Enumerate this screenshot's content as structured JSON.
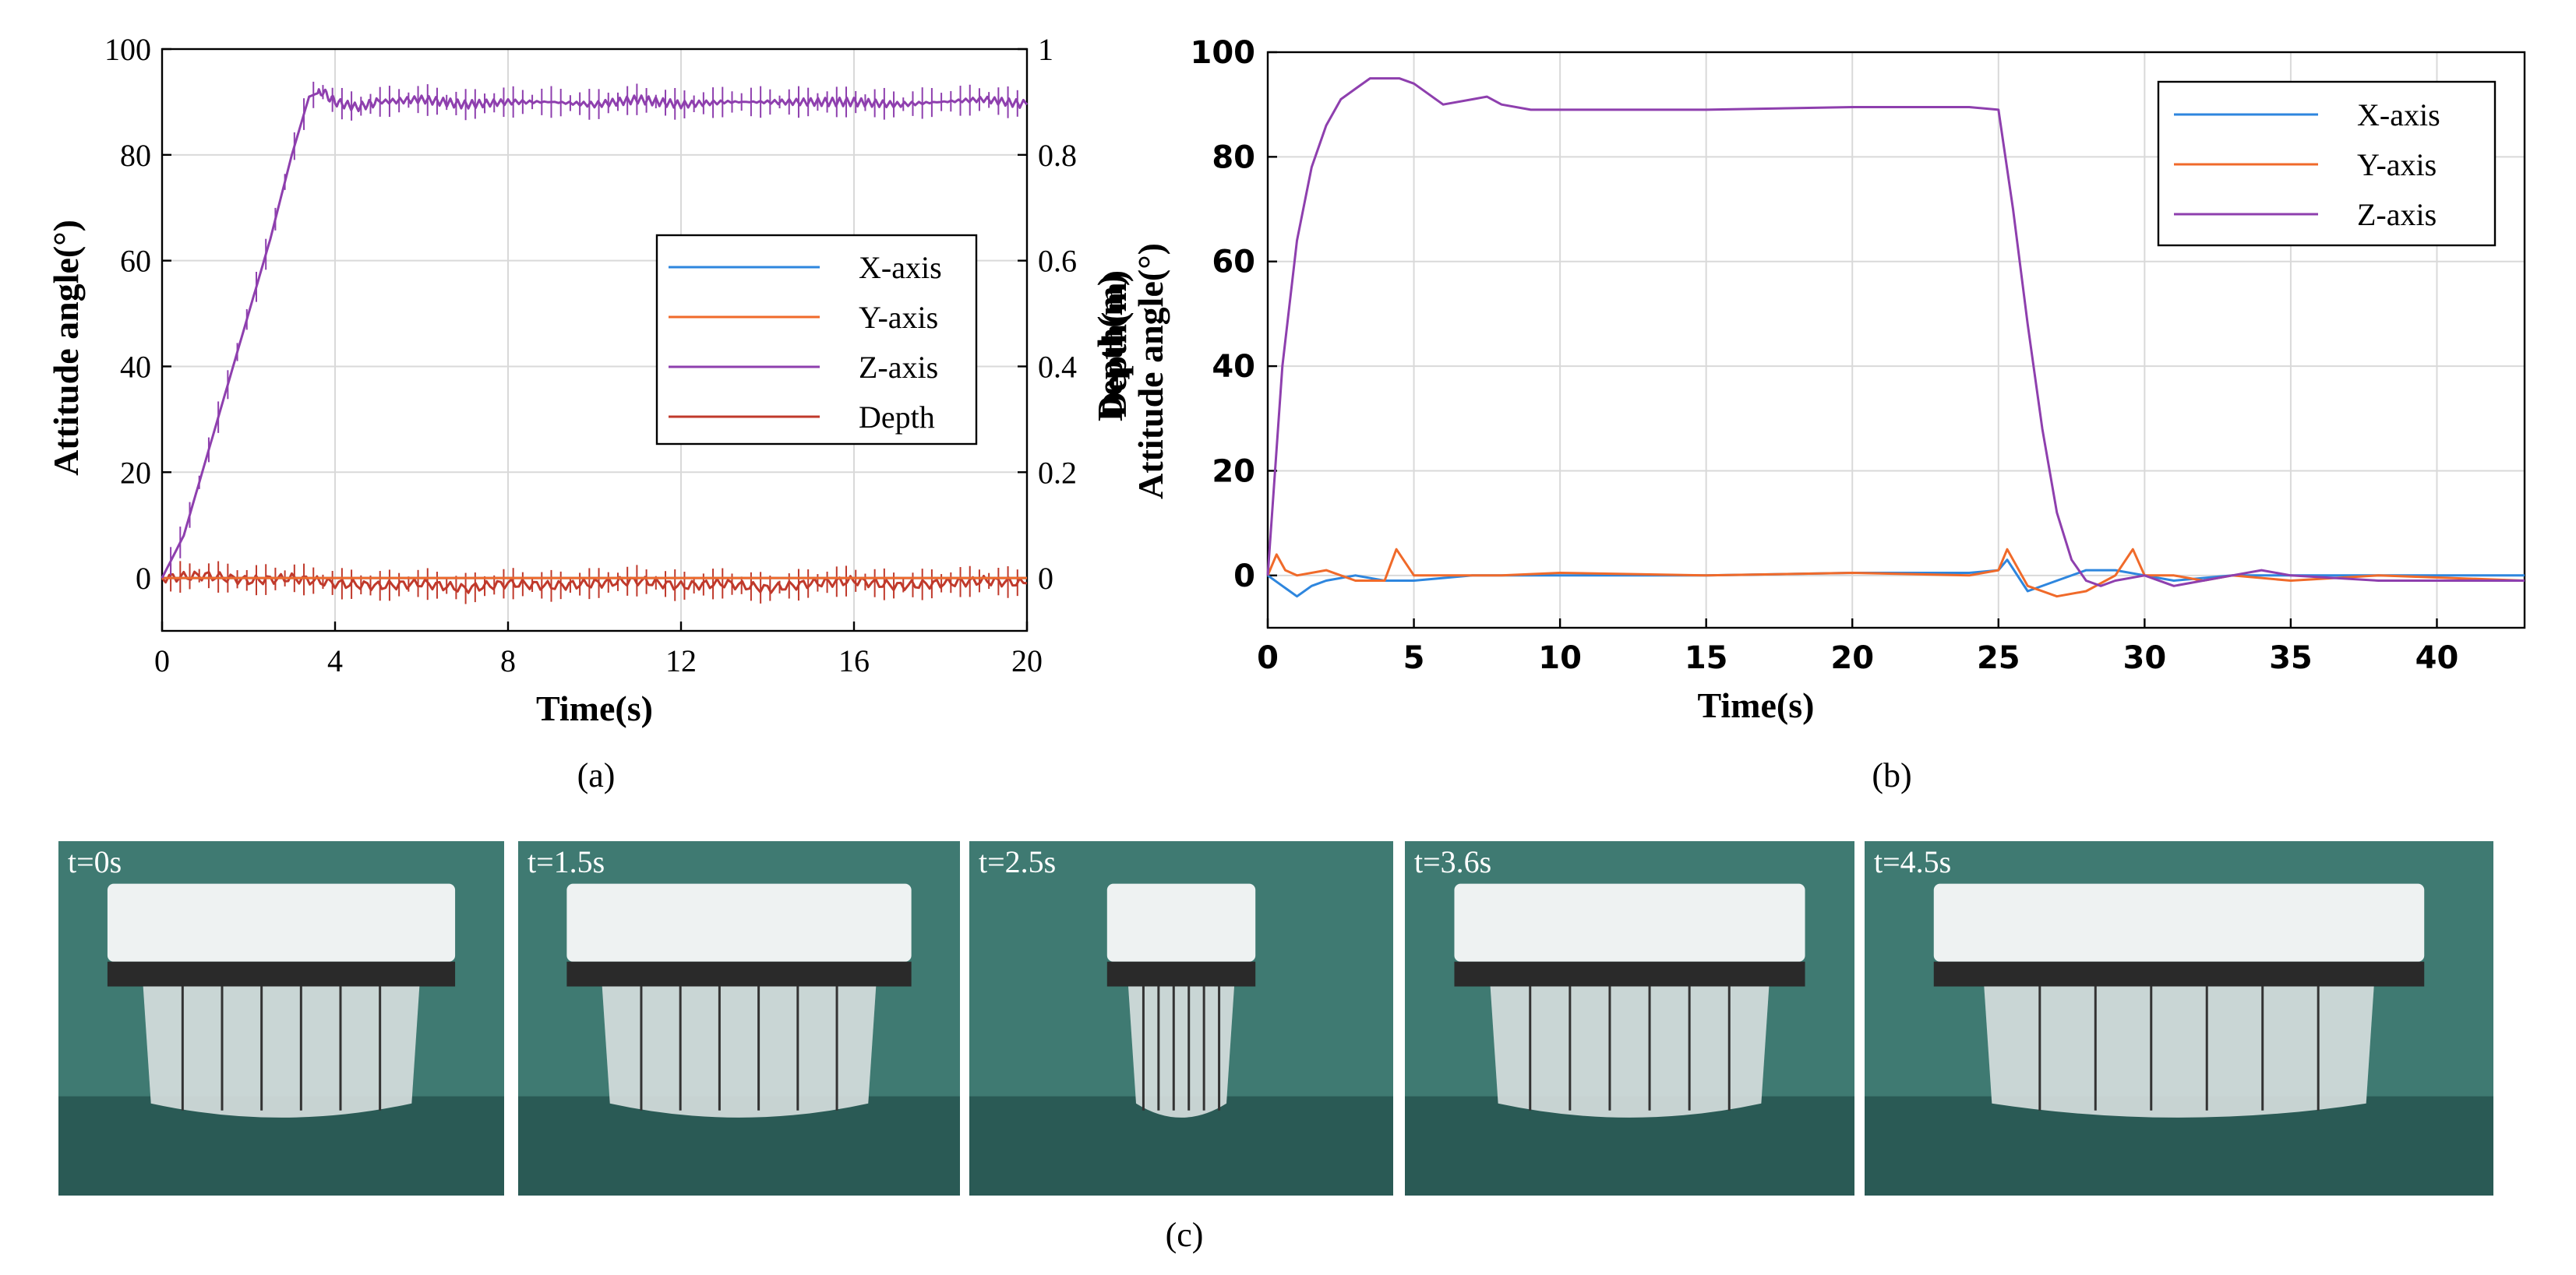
{
  "chart_data": [
    {
      "panel": "(a)",
      "type": "line",
      "xlabel": "Time(s)",
      "ylabel": "Attitude angle(°)",
      "y2label": "Depth(m)",
      "xlim": [
        0,
        20
      ],
      "ylim": [
        -10,
        100
      ],
      "y2lim": [
        -0.1,
        1.0
      ],
      "xticks": [
        0,
        4,
        8,
        12,
        16,
        20
      ],
      "yticks": [
        0,
        20,
        40,
        60,
        80,
        100
      ],
      "y2ticks": [
        "0",
        "0.2",
        "0.4",
        "0.6",
        "0.8",
        "1"
      ],
      "y2tick_values": [
        0,
        0.2,
        0.4,
        0.6,
        0.8,
        1.0
      ],
      "grid": true,
      "legend_position": "center-right",
      "series": [
        {
          "name": "X-axis",
          "color": "#2e86de",
          "axis": "left",
          "x": [
            0,
            20
          ],
          "y": [
            0,
            0
          ]
        },
        {
          "name": "Y-axis",
          "color": "#f06a2a",
          "axis": "left",
          "x": [
            0,
            20
          ],
          "y": [
            0,
            0
          ]
        },
        {
          "name": "Z-axis",
          "color": "#8e3fae",
          "axis": "left",
          "x": [
            0,
            0.5,
            1,
            1.5,
            2,
            2.5,
            3,
            3.4,
            3.7,
            4,
            4.5,
            5,
            6,
            7,
            8,
            9,
            10,
            11,
            12,
            13,
            14,
            15,
            16,
            17,
            18,
            19,
            20
          ],
          "y": [
            0,
            8,
            22,
            36,
            50,
            64,
            80,
            91,
            92,
            90,
            89,
            90,
            90.5,
            89.5,
            90,
            90,
            89.5,
            90.5,
            89.5,
            90,
            90,
            90,
            90,
            89.5,
            90,
            90.5,
            89.5
          ]
        },
        {
          "name": "Depth",
          "color": "#c0392b",
          "axis": "left",
          "x": [
            0,
            1,
            2,
            3,
            4,
            5,
            6,
            7,
            8,
            9,
            10,
            11,
            12,
            13,
            14,
            15,
            16,
            17,
            18,
            19,
            20
          ],
          "y": [
            0,
            0.5,
            -0.5,
            0,
            -1,
            -1.5,
            -1,
            -2,
            -1,
            -1.5,
            -1,
            -0.5,
            -1.5,
            -1,
            -2,
            -1,
            -0.5,
            -1.5,
            -1,
            -0.5,
            -1
          ]
        }
      ]
    },
    {
      "panel": "(b)",
      "type": "line",
      "xlabel": "Time(s)",
      "ylabel": "Attitude angle(°)",
      "ylabel_overlap": "Depth(m)",
      "xlim": [
        0,
        43
      ],
      "ylim": [
        -10,
        100
      ],
      "xticks": [
        0,
        5,
        10,
        15,
        20,
        25,
        30,
        35,
        40
      ],
      "yticks": [
        0,
        20,
        40,
        60,
        80,
        100
      ],
      "grid": true,
      "legend_position": "top-right",
      "series": [
        {
          "name": "X-axis",
          "color": "#2e86de",
          "x": [
            0,
            0.5,
            1,
            1.5,
            2,
            3,
            4,
            5,
            7,
            10,
            15,
            20,
            24,
            25,
            25.3,
            26,
            27,
            28,
            29,
            30,
            31,
            33,
            35,
            38,
            43
          ],
          "y": [
            0,
            -2,
            -4,
            -2,
            -1,
            0,
            -1,
            -1,
            0,
            0,
            0,
            0.5,
            0.5,
            1,
            3,
            -3,
            -1,
            1,
            1,
            0,
            -1,
            0,
            0,
            0,
            0
          ]
        },
        {
          "name": "Y-axis",
          "color": "#f06a2a",
          "x": [
            0,
            0.3,
            0.6,
            1,
            2,
            3,
            4,
            4.4,
            5,
            6,
            8,
            10,
            15,
            20,
            24,
            25,
            25.3,
            26,
            27,
            28,
            29,
            29.6,
            30,
            31,
            32,
            33,
            35,
            38,
            43
          ],
          "y": [
            0,
            4,
            1,
            0,
            1,
            -1,
            -1,
            5,
            0,
            0,
            0,
            0.5,
            0,
            0.5,
            0,
            1,
            5,
            -2,
            -4,
            -3,
            0,
            5,
            0,
            0,
            -1,
            0,
            -1,
            0,
            -1
          ]
        },
        {
          "name": "Z-axis",
          "color": "#8e3fae",
          "x": [
            0,
            0.5,
            1,
            1.5,
            2,
            2.5,
            3,
            3.5,
            4,
            4.5,
            5,
            5.5,
            6,
            7,
            7.5,
            8,
            9,
            10,
            15,
            20,
            24,
            25,
            25.5,
            26,
            26.5,
            27,
            27.5,
            28,
            28.5,
            29,
            30,
            31,
            32,
            33,
            34,
            35,
            38,
            40,
            43
          ],
          "y": [
            0,
            40,
            64,
            78,
            86,
            91,
            93,
            95,
            95,
            95,
            94,
            92,
            90,
            91,
            91.5,
            90,
            89,
            89,
            89,
            89.5,
            89.5,
            89,
            70,
            48,
            28,
            12,
            3,
            -1,
            -2,
            -1,
            0,
            -2,
            -1,
            0,
            1,
            0,
            -1,
            -1,
            -1
          ]
        }
      ]
    }
  ],
  "panels": {
    "a_label": "(a)",
    "b_label": "(b)",
    "c_label": "(c)"
  },
  "photos": [
    {
      "caption": "t=0s"
    },
    {
      "caption": "t=1.5s"
    },
    {
      "caption": "t=2.5s"
    },
    {
      "caption": "t=3.6s"
    },
    {
      "caption": "t=4.5s"
    }
  ],
  "colors": {
    "water": "#3f7a72",
    "water_dark": "#2a5a55",
    "robot": "#eef2f2",
    "fin": "#d8e0e0"
  }
}
